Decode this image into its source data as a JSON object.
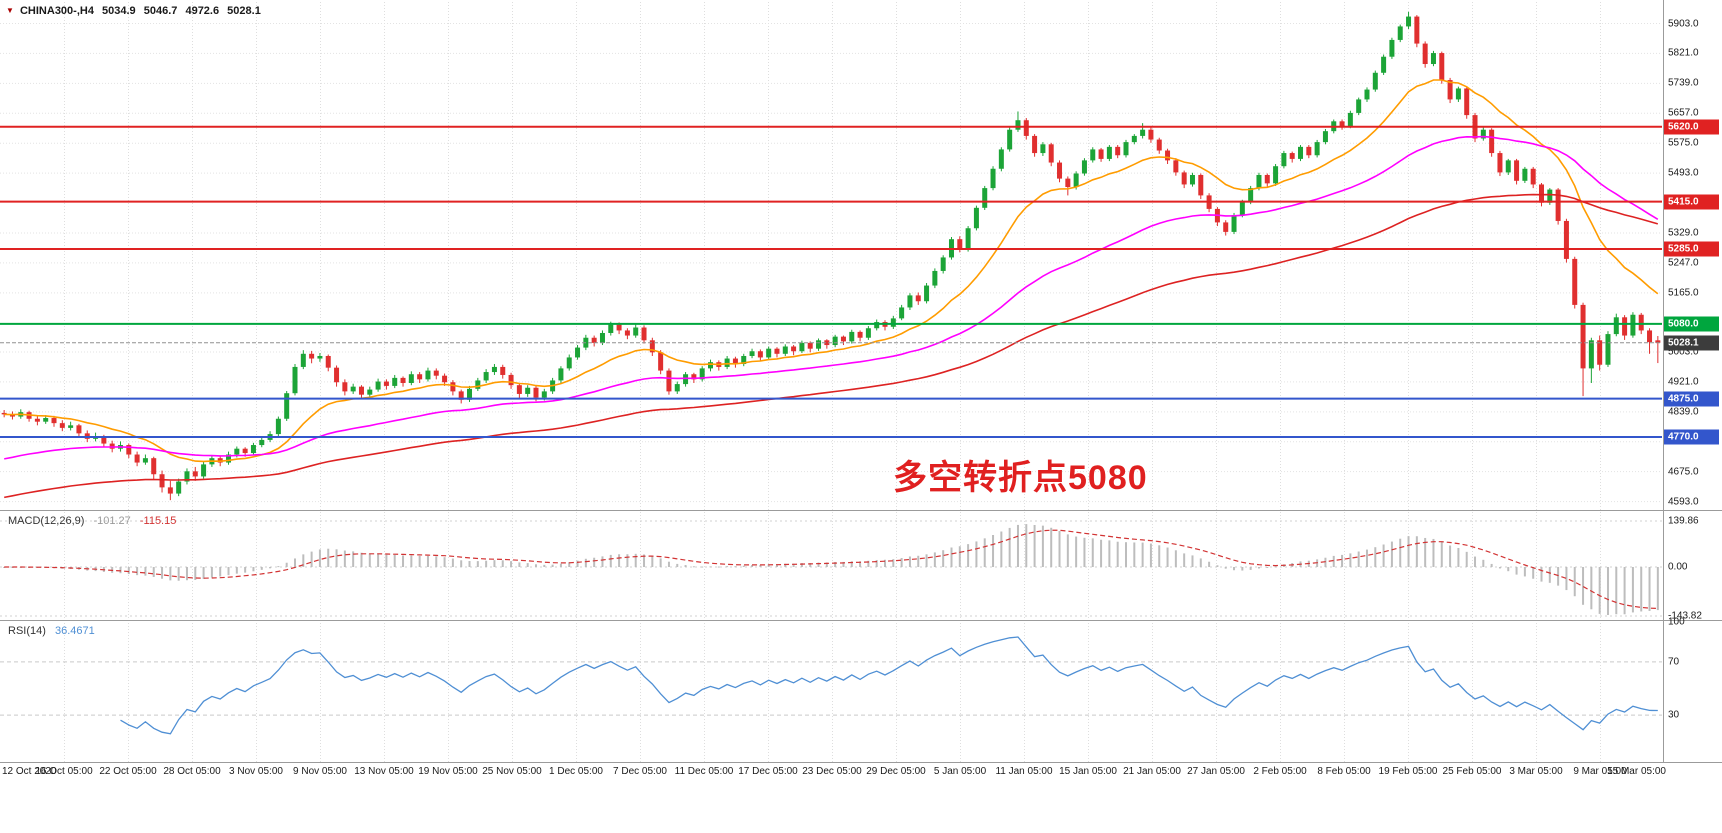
{
  "header": {
    "marker": "▼",
    "symbol_timeframe": "CHINA300-,H4",
    "open": "5034.9",
    "high": "5046.7",
    "low": "4972.6",
    "close": "5028.1"
  },
  "annotation": {
    "text": "多空转折点5080",
    "color": "#e02020"
  },
  "macd": {
    "name": "MACD(12,26,9)",
    "main_value": "-101.27",
    "signal_value": "-115.15",
    "axis_labels": [
      "139.86",
      "0.00",
      "-143.82"
    ]
  },
  "rsi": {
    "name": "RSI(14)",
    "value": "36.4671",
    "axis_labels": [
      "100",
      "70",
      "30"
    ]
  },
  "chart_data": {
    "type": "candlestick",
    "symbol": "CHINA300-",
    "timeframe": "H4",
    "ylim": [
      4570,
      5940
    ],
    "y_axis_labels": [
      "5903.0",
      "5821.0",
      "5739.0",
      "5657.0",
      "5575.0",
      "5493.0",
      "5329.0",
      "5247.0",
      "5165.0",
      "5003.0",
      "4921.0",
      "4839.0",
      "4757.0",
      "4675.0",
      "4593.0"
    ],
    "x_axis_labels": [
      "12 Oct 2020",
      "16 Oct 05:00",
      "22 Oct 05:00",
      "28 Oct 05:00",
      "3 Nov 05:00",
      "9 Nov 05:00",
      "13 Nov 05:00",
      "19 Nov 05:00",
      "25 Nov 05:00",
      "1 Dec 05:00",
      "7 Dec 05:00",
      "11 Dec 05:00",
      "17 Dec 05:00",
      "23 Dec 05:00",
      "29 Dec 05:00",
      "5 Jan 05:00",
      "11 Jan 05:00",
      "15 Jan 05:00",
      "21 Jan 05:00",
      "27 Jan 05:00",
      "2 Feb 05:00",
      "8 Feb 05:00",
      "19 Feb 05:00",
      "25 Feb 05:00",
      "3 Mar 05:00",
      "9 Mar 05:00",
      "15 Mar 05:00"
    ],
    "levels": [
      {
        "label": "5620.0",
        "price": 5620.0,
        "color": "#e02222",
        "kind": "resistance"
      },
      {
        "label": "5415.0",
        "price": 5415.0,
        "color": "#e02222",
        "kind": "resistance"
      },
      {
        "label": "5285.0",
        "price": 5285.0,
        "color": "#e02222",
        "kind": "resistance"
      },
      {
        "label": "5080.0",
        "price": 5080.0,
        "color": "#00a63e",
        "kind": "pivot"
      },
      {
        "label": "4875.0",
        "price": 4875.0,
        "color": "#3356cc",
        "kind": "support"
      },
      {
        "label": "4770.0",
        "price": 4770.0,
        "color": "#3356cc",
        "kind": "support"
      }
    ],
    "current_price": {
      "label": "5028.1",
      "price": 5028.1,
      "tag_color": "#3c3c3c",
      "line_color": "#909090"
    },
    "colors": {
      "up": "#1ca437",
      "down": "#e02f2f",
      "ma_fast": "#ff9c00",
      "ma_mid": "#ff00ff",
      "ma_slow": "#dd2222",
      "macd_hist": "#bdbdbd",
      "macd_signal": "#d23333",
      "rsi_line": "#4f8fd4",
      "macd_main_text": "#9a9a9a",
      "macd_signal_text": "#d23333",
      "rsi_value_text": "#4f8fd4"
    },
    "candles": [
      [
        4836,
        4844,
        4824,
        4832
      ],
      [
        4832,
        4840,
        4818,
        4826
      ],
      [
        4826,
        4846,
        4820,
        4838
      ],
      [
        4838,
        4842,
        4812,
        4820
      ],
      [
        4820,
        4830,
        4802,
        4812
      ],
      [
        4812,
        4830,
        4806,
        4822
      ],
      [
        4822,
        4828,
        4798,
        4808
      ],
      [
        4808,
        4816,
        4786,
        4795
      ],
      [
        4795,
        4812,
        4788,
        4802
      ],
      [
        4802,
        4806,
        4770,
        4780
      ],
      [
        4780,
        4788,
        4756,
        4765
      ],
      [
        4765,
        4782,
        4758,
        4772
      ],
      [
        4772,
        4776,
        4742,
        4752
      ],
      [
        4752,
        4760,
        4728,
        4738
      ],
      [
        4738,
        4758,
        4730,
        4748
      ],
      [
        4748,
        4752,
        4712,
        4722
      ],
      [
        4722,
        4730,
        4690,
        4700
      ],
      [
        4700,
        4722,
        4694,
        4712
      ],
      [
        4712,
        4716,
        4654,
        4668
      ],
      [
        4668,
        4678,
        4618,
        4632
      ],
      [
        4632,
        4650,
        4597,
        4615
      ],
      [
        4615,
        4656,
        4608,
        4648
      ],
      [
        4648,
        4684,
        4640,
        4676
      ],
      [
        4676,
        4688,
        4650,
        4662
      ],
      [
        4662,
        4702,
        4656,
        4695
      ],
      [
        4695,
        4720,
        4688,
        4712
      ],
      [
        4712,
        4718,
        4690,
        4700
      ],
      [
        4700,
        4730,
        4694,
        4722
      ],
      [
        4722,
        4744,
        4714,
        4738
      ],
      [
        4738,
        4742,
        4716,
        4726
      ],
      [
        4726,
        4754,
        4720,
        4748
      ],
      [
        4748,
        4770,
        4742,
        4762
      ],
      [
        4762,
        4786,
        4756,
        4778
      ],
      [
        4778,
        4826,
        4772,
        4820
      ],
      [
        4820,
        4896,
        4814,
        4890
      ],
      [
        4890,
        4970,
        4884,
        4962
      ],
      [
        4962,
        5008,
        4956,
        4998
      ],
      [
        4998,
        5006,
        4972,
        4985
      ],
      [
        4985,
        5000,
        4976,
        4992
      ],
      [
        4992,
        4996,
        4950,
        4960
      ],
      [
        4960,
        4966,
        4908,
        4920
      ],
      [
        4920,
        4928,
        4884,
        4895
      ],
      [
        4895,
        4916,
        4888,
        4908
      ],
      [
        4908,
        4912,
        4876,
        4886
      ],
      [
        4886,
        4908,
        4878,
        4900
      ],
      [
        4900,
        4930,
        4894,
        4922
      ],
      [
        4922,
        4928,
        4900,
        4910
      ],
      [
        4910,
        4940,
        4904,
        4932
      ],
      [
        4932,
        4936,
        4908,
        4918
      ],
      [
        4918,
        4950,
        4912,
        4942
      ],
      [
        4942,
        4948,
        4918,
        4928
      ],
      [
        4928,
        4960,
        4922,
        4952
      ],
      [
        4952,
        4958,
        4928,
        4938
      ],
      [
        4938,
        4944,
        4910,
        4920
      ],
      [
        4920,
        4926,
        4884,
        4895
      ],
      [
        4895,
        4900,
        4862,
        4872
      ],
      [
        4872,
        4910,
        4866,
        4902
      ],
      [
        4902,
        4932,
        4896,
        4925
      ],
      [
        4925,
        4956,
        4918,
        4948
      ],
      [
        4948,
        4970,
        4940,
        4962
      ],
      [
        4962,
        4968,
        4930,
        4940
      ],
      [
        4940,
        4946,
        4902,
        4912
      ],
      [
        4912,
        4918,
        4876,
        4888
      ],
      [
        4888,
        4912,
        4880,
        4905
      ],
      [
        4905,
        4910,
        4868,
        4878
      ],
      [
        4878,
        4902,
        4870,
        4895
      ],
      [
        4895,
        4932,
        4888,
        4925
      ],
      [
        4925,
        4964,
        4918,
        4958
      ],
      [
        4958,
        4996,
        4952,
        4988
      ],
      [
        4988,
        5022,
        4982,
        5015
      ],
      [
        5015,
        5050,
        5008,
        5042
      ],
      [
        5042,
        5048,
        5018,
        5028
      ],
      [
        5028,
        5062,
        5022,
        5055
      ],
      [
        5055,
        5086,
        5048,
        5078
      ],
      [
        5078,
        5084,
        5052,
        5062
      ],
      [
        5062,
        5068,
        5038,
        5048
      ],
      [
        5048,
        5078,
        5042,
        5070
      ],
      [
        5070,
        5076,
        5026,
        5035
      ],
      [
        5035,
        5042,
        4992,
        5002
      ],
      [
        5002,
        5008,
        4942,
        4952
      ],
      [
        4952,
        4958,
        4886,
        4895
      ],
      [
        4895,
        4922,
        4888,
        4915
      ],
      [
        4915,
        4948,
        4908,
        4942
      ],
      [
        4942,
        4946,
        4918,
        4928
      ],
      [
        4928,
        4964,
        4922,
        4958
      ],
      [
        4958,
        4982,
        4950,
        4975
      ],
      [
        4975,
        4980,
        4952,
        4962
      ],
      [
        4962,
        4992,
        4956,
        4985
      ],
      [
        4985,
        4990,
        4960,
        4970
      ],
      [
        4970,
        4998,
        4964,
        4992
      ],
      [
        4992,
        5012,
        4986,
        5005
      ],
      [
        5005,
        5010,
        4978,
        4988
      ],
      [
        4988,
        5018,
        4982,
        5012
      ],
      [
        5012,
        5016,
        4988,
        4998
      ],
      [
        4998,
        5024,
        4992,
        5018
      ],
      [
        5018,
        5022,
        4994,
        5005
      ],
      [
        5005,
        5034,
        5000,
        5028
      ],
      [
        5028,
        5032,
        5002,
        5012
      ],
      [
        5012,
        5040,
        5006,
        5035
      ],
      [
        5035,
        5038,
        5012,
        5022
      ],
      [
        5022,
        5050,
        5016,
        5045
      ],
      [
        5045,
        5048,
        5022,
        5032
      ],
      [
        5032,
        5064,
        5026,
        5058
      ],
      [
        5058,
        5062,
        5032,
        5042
      ],
      [
        5042,
        5074,
        5036,
        5068
      ],
      [
        5068,
        5092,
        5062,
        5085
      ],
      [
        5085,
        5090,
        5062,
        5072
      ],
      [
        5072,
        5102,
        5066,
        5095
      ],
      [
        5095,
        5132,
        5090,
        5125
      ],
      [
        5125,
        5164,
        5118,
        5158
      ],
      [
        5158,
        5166,
        5132,
        5142
      ],
      [
        5142,
        5192,
        5136,
        5185
      ],
      [
        5185,
        5232,
        5178,
        5225
      ],
      [
        5225,
        5268,
        5218,
        5262
      ],
      [
        5262,
        5318,
        5256,
        5312
      ],
      [
        5312,
        5320,
        5276,
        5285
      ],
      [
        5285,
        5348,
        5278,
        5342
      ],
      [
        5342,
        5404,
        5336,
        5398
      ],
      [
        5398,
        5458,
        5392,
        5452
      ],
      [
        5452,
        5512,
        5446,
        5505
      ],
      [
        5505,
        5564,
        5498,
        5558
      ],
      [
        5558,
        5618,
        5552,
        5612
      ],
      [
        5612,
        5662,
        5606,
        5638
      ],
      [
        5638,
        5644,
        5585,
        5595
      ],
      [
        5595,
        5600,
        5538,
        5548
      ],
      [
        5548,
        5578,
        5540,
        5572
      ],
      [
        5572,
        5576,
        5512,
        5522
      ],
      [
        5522,
        5528,
        5468,
        5478
      ],
      [
        5478,
        5484,
        5432,
        5455
      ],
      [
        5455,
        5498,
        5448,
        5492
      ],
      [
        5492,
        5534,
        5486,
        5528
      ],
      [
        5528,
        5564,
        5522,
        5558
      ],
      [
        5558,
        5562,
        5524,
        5532
      ],
      [
        5532,
        5570,
        5526,
        5565
      ],
      [
        5565,
        5570,
        5534,
        5542
      ],
      [
        5542,
        5584,
        5536,
        5578
      ],
      [
        5578,
        5600,
        5572,
        5595
      ],
      [
        5595,
        5630,
        5588,
        5612
      ],
      [
        5612,
        5618,
        5576,
        5585
      ],
      [
        5585,
        5590,
        5546,
        5555
      ],
      [
        5555,
        5560,
        5518,
        5528
      ],
      [
        5528,
        5534,
        5486,
        5495
      ],
      [
        5495,
        5500,
        5452,
        5462
      ],
      [
        5462,
        5494,
        5456,
        5488
      ],
      [
        5488,
        5492,
        5422,
        5432
      ],
      [
        5432,
        5438,
        5386,
        5395
      ],
      [
        5395,
        5400,
        5348,
        5358
      ],
      [
        5358,
        5364,
        5322,
        5332
      ],
      [
        5332,
        5384,
        5326,
        5378
      ],
      [
        5378,
        5420,
        5372,
        5415
      ],
      [
        5415,
        5458,
        5408,
        5452
      ],
      [
        5452,
        5494,
        5446,
        5488
      ],
      [
        5488,
        5492,
        5456,
        5465
      ],
      [
        5465,
        5518,
        5458,
        5512
      ],
      [
        5512,
        5554,
        5506,
        5548
      ],
      [
        5548,
        5552,
        5522,
        5532
      ],
      [
        5532,
        5570,
        5526,
        5565
      ],
      [
        5565,
        5570,
        5534,
        5542
      ],
      [
        5542,
        5584,
        5536,
        5578
      ],
      [
        5578,
        5614,
        5572,
        5608
      ],
      [
        5608,
        5640,
        5602,
        5635
      ],
      [
        5635,
        5640,
        5612,
        5622
      ],
      [
        5622,
        5664,
        5616,
        5658
      ],
      [
        5658,
        5700,
        5652,
        5695
      ],
      [
        5695,
        5728,
        5688,
        5722
      ],
      [
        5722,
        5774,
        5716,
        5768
      ],
      [
        5768,
        5818,
        5762,
        5812
      ],
      [
        5812,
        5864,
        5806,
        5858
      ],
      [
        5858,
        5900,
        5852,
        5895
      ],
      [
        5895,
        5935,
        5888,
        5922
      ],
      [
        5922,
        5926,
        5838,
        5848
      ],
      [
        5848,
        5854,
        5782,
        5792
      ],
      [
        5792,
        5828,
        5786,
        5822
      ],
      [
        5822,
        5826,
        5738,
        5748
      ],
      [
        5748,
        5754,
        5685,
        5695
      ],
      [
        5695,
        5730,
        5688,
        5725
      ],
      [
        5725,
        5730,
        5642,
        5652
      ],
      [
        5652,
        5658,
        5578,
        5588
      ],
      [
        5588,
        5618,
        5582,
        5612
      ],
      [
        5612,
        5616,
        5538,
        5548
      ],
      [
        5548,
        5554,
        5485,
        5495
      ],
      [
        5495,
        5532,
        5488,
        5528
      ],
      [
        5528,
        5532,
        5462,
        5472
      ],
      [
        5472,
        5510,
        5466,
        5505
      ],
      [
        5505,
        5510,
        5452,
        5462
      ],
      [
        5462,
        5466,
        5402,
        5412
      ],
      [
        5412,
        5452,
        5406,
        5448
      ],
      [
        5448,
        5452,
        5352,
        5362
      ],
      [
        5362,
        5368,
        5248,
        5258
      ],
      [
        5258,
        5264,
        5122,
        5132
      ],
      [
        5132,
        5138,
        4882,
        4958
      ],
      [
        4958,
        5042,
        4918,
        5035
      ],
      [
        5035,
        5048,
        4952,
        4968
      ],
      [
        4968,
        5060,
        4962,
        5052
      ],
      [
        5052,
        5108,
        5046,
        5098
      ],
      [
        5098,
        5104,
        5036,
        5048
      ],
      [
        5048,
        5112,
        5042,
        5105
      ],
      [
        5105,
        5110,
        5052,
        5062
      ],
      [
        5062,
        5068,
        4998,
        5030
      ],
      [
        5034.9,
        5046.7,
        4972.6,
        5028.1
      ]
    ]
  }
}
